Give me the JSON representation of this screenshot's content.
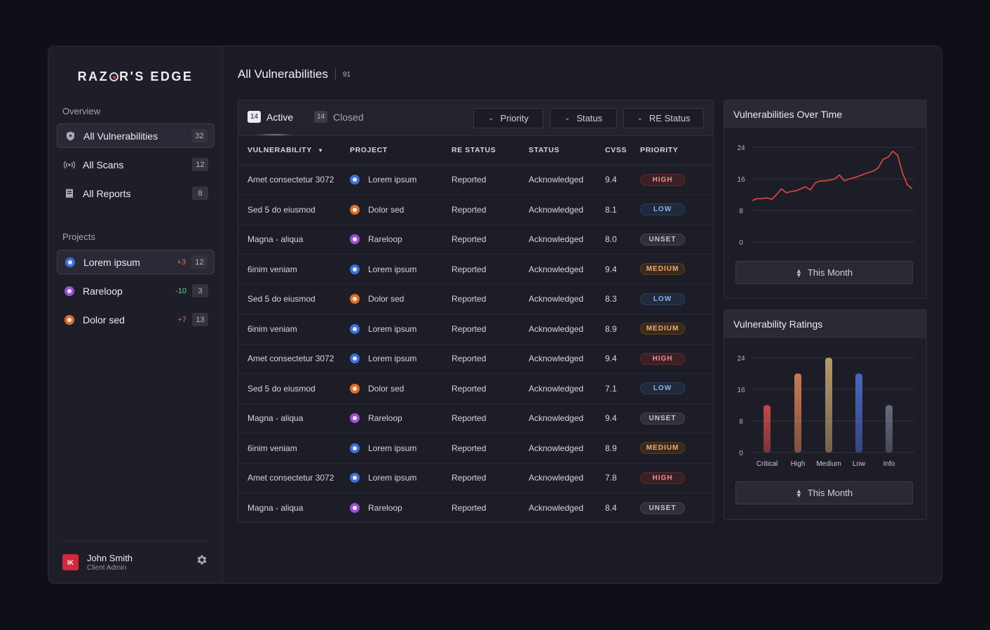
{
  "brand": {
    "name_pre": "RAZ",
    "name_post": "R'S EDGE"
  },
  "sidebar": {
    "overview_label": "Overview",
    "overview_items": [
      {
        "label": "All Vulnerabilities",
        "count": "32",
        "icon": "shield-icon"
      },
      {
        "label": "All Scans",
        "count": "12",
        "icon": "radar-icon"
      },
      {
        "label": "All Reports",
        "count": "8",
        "icon": "report-icon"
      }
    ],
    "projects_label": "Projects",
    "projects": [
      {
        "label": "Lorem ipsum",
        "delta": "+3",
        "count": "12",
        "color": "#3e6fd8"
      },
      {
        "label": "Rareloop",
        "delta": "-10",
        "count": "3",
        "color": "#9b4fd3"
      },
      {
        "label": "Dolor sed",
        "delta": "+7",
        "count": "13",
        "color": "#db6f2c"
      }
    ],
    "user": {
      "initials": "IK",
      "name": "John Smith",
      "role": "Client Admin"
    }
  },
  "main": {
    "title": "All Vulnerabilities",
    "count": "91",
    "tabs": [
      {
        "count": "14",
        "label": "Active"
      },
      {
        "count": "14",
        "label": "Closed"
      }
    ],
    "filters": [
      "Priority",
      "Status",
      "RE Status"
    ],
    "columns": [
      "VULNERABILITY",
      "PROJECT",
      "RE STATUS",
      "STATUS",
      "CVSS",
      "PRIORITY"
    ],
    "rows": [
      {
        "vuln": "Amet consectetur 3072",
        "project": "Lorem ipsum",
        "color": "blue",
        "re_status": "Reported",
        "status": "Acknowledged",
        "cvss": "9.4",
        "priority": "HIGH"
      },
      {
        "vuln": "Sed 5 do eiusmod",
        "project": "Dolor sed",
        "color": "orange",
        "re_status": "Reported",
        "status": "Acknowledged",
        "cvss": "8.1",
        "priority": "LOW"
      },
      {
        "vuln": "Magna - aliqua",
        "project": "Rareloop",
        "color": "purple",
        "re_status": "Reported",
        "status": "Acknowledged",
        "cvss": "8.0",
        "priority": "UNSET"
      },
      {
        "vuln": "6inim veniam",
        "project": "Lorem ipsum",
        "color": "blue",
        "re_status": "Reported",
        "status": "Acknowledged",
        "cvss": "9.4",
        "priority": "MEDIUM"
      },
      {
        "vuln": "Sed 5 do eiusmod",
        "project": "Dolor sed",
        "color": "orange",
        "re_status": "Reported",
        "status": "Acknowledged",
        "cvss": "8.3",
        "priority": "LOW"
      },
      {
        "vuln": "6inim veniam",
        "project": "Lorem ipsum",
        "color": "blue",
        "re_status": "Reported",
        "status": "Acknowledged",
        "cvss": "8.9",
        "priority": "MEDIUM"
      },
      {
        "vuln": "Amet consectetur 3072",
        "project": "Lorem ipsum",
        "color": "blue",
        "re_status": "Reported",
        "status": "Acknowledged",
        "cvss": "9.4",
        "priority": "HIGH"
      },
      {
        "vuln": "Sed 5 do eiusmod",
        "project": "Dolor sed",
        "color": "orange",
        "re_status": "Reported",
        "status": "Acknowledged",
        "cvss": "7.1",
        "priority": "LOW"
      },
      {
        "vuln": "Magna - aliqua",
        "project": "Rareloop",
        "color": "purple",
        "re_status": "Reported",
        "status": "Acknowledged",
        "cvss": "9.4",
        "priority": "UNSET"
      },
      {
        "vuln": "6inim veniam",
        "project": "Lorem ipsum",
        "color": "blue",
        "re_status": "Reported",
        "status": "Acknowledged",
        "cvss": "8.9",
        "priority": "MEDIUM"
      },
      {
        "vuln": "Amet consectetur 3072",
        "project": "Lorem ipsum",
        "color": "blue",
        "re_status": "Reported",
        "status": "Acknowledged",
        "cvss": "7.8",
        "priority": "HIGH"
      },
      {
        "vuln": "Magna - aliqua",
        "project": "Rareloop",
        "color": "purple",
        "re_status": "Reported",
        "status": "Acknowledged",
        "cvss": "8.4",
        "priority": "UNSET"
      }
    ]
  },
  "charts": {
    "over_time_title": "Vulnerabilities Over Time",
    "ratings_title": "Vulnerability Ratings",
    "period_label": "This Month"
  },
  "chart_data": [
    {
      "type": "line",
      "title": "Vulnerabilities Over Time",
      "yticks": [
        0,
        8,
        16,
        24
      ],
      "ylim": [
        0,
        24
      ],
      "grid": true,
      "series": [
        {
          "values": [
            10.5,
            11,
            11,
            11.2,
            10.8,
            12,
            13.5,
            12.5,
            12.8,
            13,
            13.5,
            14,
            13.2,
            15,
            15.5,
            15.5,
            15.7,
            16,
            17,
            15.5,
            16,
            16.3,
            16.7,
            17.2,
            17.6,
            18,
            18.8,
            21,
            21.5,
            23,
            22,
            17.5,
            14.5,
            13.5
          ]
        }
      ],
      "color": "#e04848"
    },
    {
      "type": "bar",
      "title": "Vulnerability Ratings",
      "categories": [
        "Critical",
        "High",
        "Medium",
        "Low",
        "Info"
      ],
      "values": [
        12,
        20,
        24,
        20,
        12
      ],
      "yticks": [
        0,
        8,
        16,
        24
      ],
      "ylim": [
        0,
        24
      ],
      "grid": true,
      "colors": [
        "#c24a4a",
        "#c97a55",
        "#b79a6a",
        "#4a66c4",
        "#6a6a80"
      ]
    }
  ]
}
